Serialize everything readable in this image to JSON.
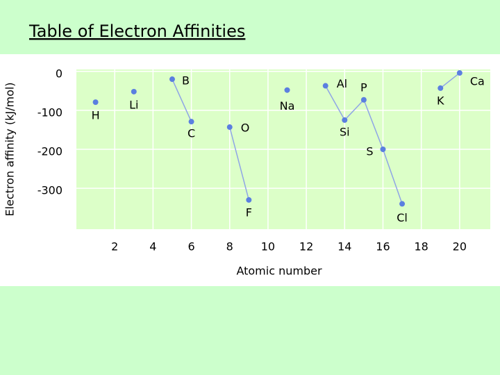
{
  "slide": {
    "title": "Table of Electron Affinities"
  },
  "chart_data": {
    "type": "line",
    "x_label": "Atomic number",
    "y_label": "Electron affinity (kJ/mol)",
    "x": [
      1,
      2,
      3,
      4,
      5,
      6,
      7,
      8,
      9,
      10,
      11,
      12,
      13,
      14,
      15,
      16,
      17,
      18,
      19,
      20
    ],
    "series": [
      {
        "name": "Electron affinity",
        "color": "#5b7fe0",
        "values": [
          -79,
          null,
          -52,
          null,
          -20,
          -129,
          null,
          -143,
          -330,
          null,
          -48,
          null,
          -37,
          -125,
          -73,
          -200,
          -340,
          null,
          -43,
          -4
        ],
        "point_labels": [
          "H",
          null,
          "Li",
          null,
          "B",
          "C",
          null,
          "O",
          "F",
          null,
          "Na",
          null,
          "Al",
          "Si",
          "P",
          "S",
          "Cl",
          null,
          "K",
          "Ca"
        ]
      }
    ],
    "xlim": [
      0,
      21.6
    ],
    "ylim": [
      -405,
      5
    ],
    "xticks": [
      2,
      4,
      6,
      8,
      10,
      12,
      14,
      16,
      18,
      20
    ],
    "yticks": [
      0,
      -100,
      -200,
      -300
    ],
    "grid": true
  }
}
